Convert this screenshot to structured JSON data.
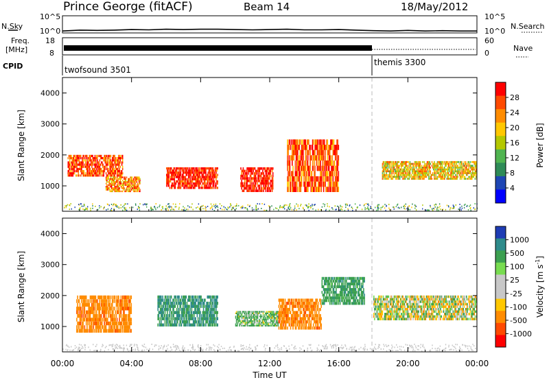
{
  "header": {
    "title": "Prince George (fitACF)",
    "beam": "Beam 14",
    "date": "18/May/2012"
  },
  "top_panels": {
    "nsky_label": "N.Sky",
    "nsky_ticks": [
      "10^5",
      "10^0"
    ],
    "nsearch_label": "N.Search",
    "nsearch_ticks": [
      "10^5",
      "10^0"
    ],
    "freq_label_1": "Freq.",
    "freq_label_2": "[MHz]",
    "freq_ticks": [
      "18",
      "8"
    ],
    "nave_label": "Nave",
    "nave_ticks": [
      "60",
      "0"
    ],
    "cpid_label": "CPID",
    "cpid_segments": [
      {
        "name": "twofsound 3501",
        "start_hour": 0,
        "end_hour": 18
      },
      {
        "name": "themis 3300",
        "start_hour": 18,
        "end_hour": 24
      }
    ]
  },
  "power_panel": {
    "ylabel": "Slant Range [km]",
    "yticks": [
      "4000",
      "3000",
      "2000",
      "1000"
    ],
    "colorbar_label": "Power [dB]",
    "colorbar_ticks": [
      "28",
      "24",
      "20",
      "16",
      "12",
      "8",
      "4"
    ],
    "colors": [
      "#ff0000",
      "#ff4a00",
      "#ff8c00",
      "#ffc800",
      "#b4c800",
      "#50b450",
      "#2e8b57",
      "#1e46b4",
      "#0000ff"
    ]
  },
  "velocity_panel": {
    "ylabel": "Slant Range [km]",
    "yticks": [
      "4000",
      "3000",
      "2000",
      "1000"
    ],
    "colorbar_label": "Velocity [m s",
    "colorbar_label_exp": "-1",
    "colorbar_label_end": "]",
    "colorbar_ticks": [
      "1000",
      "500",
      "100",
      "25",
      "-25",
      "-100",
      "-500",
      "-1000"
    ],
    "colors": [
      "#1e3cb4",
      "#2e8b8b",
      "#3ca050",
      "#78dc50",
      "#c8c8c8",
      "#c8c8c8",
      "#ffc800",
      "#ff8c00",
      "#ff4a00",
      "#ff0000"
    ]
  },
  "xaxis": {
    "ticks": [
      "00:00",
      "04:00",
      "08:00",
      "12:00",
      "16:00",
      "20:00",
      "00:00"
    ],
    "label": "Time UT"
  },
  "chart_data": [
    {
      "type": "line",
      "ylim": [
        0,
        5
      ],
      "xlim": [
        0,
        24
      ],
      "note_series": "N.Sky counts (log)",
      "x": [
        0,
        1,
        2,
        3,
        4,
        5,
        6,
        7,
        8,
        9,
        10,
        11,
        12,
        13,
        14,
        15,
        16,
        17,
        18,
        19,
        20,
        21,
        22,
        23,
        24
      ],
      "values": [
        0.2,
        0.5,
        0.4,
        0.5,
        0.7,
        0.6,
        0.8,
        0.7,
        0.8,
        0.8,
        0.7,
        0.6,
        0.7,
        0.8,
        0.6,
        0.6,
        0.7,
        0.5,
        0.3,
        0.2,
        0.4,
        0.2,
        0.3,
        0.2,
        0.2
      ]
    },
    {
      "type": "heatmap",
      "xlim": [
        0,
        24
      ],
      "ylim": [
        180,
        4500
      ],
      "quantity": "Power [dB]",
      "regions": [
        {
          "t0": 0.3,
          "t1": 3.5,
          "r0": 1300,
          "r1": 2000,
          "value": 24
        },
        {
          "t0": 2.5,
          "t1": 4.5,
          "r0": 800,
          "r1": 1300,
          "value": 20
        },
        {
          "t0": 6.0,
          "t1": 9.0,
          "r0": 900,
          "r1": 1600,
          "value": 28
        },
        {
          "t0": 10.3,
          "t1": 12.2,
          "r0": 800,
          "r1": 1600,
          "value": 28
        },
        {
          "t0": 13.0,
          "t1": 16.0,
          "r0": 800,
          "r1": 2500,
          "value": 24
        },
        {
          "t0": 18.5,
          "t1": 24.0,
          "r0": 1200,
          "r1": 1800,
          "value": 16
        }
      ]
    },
    {
      "type": "heatmap",
      "xlim": [
        0,
        24
      ],
      "ylim": [
        180,
        4500
      ],
      "quantity": "Velocity [m s-1]",
      "regions": [
        {
          "t0": 0.8,
          "t1": 4.0,
          "r0": 800,
          "r1": 2000,
          "value": -300
        },
        {
          "t0": 5.5,
          "t1": 9.0,
          "r0": 1000,
          "r1": 2000,
          "value": 300
        },
        {
          "t0": 10.0,
          "t1": 12.5,
          "r0": 1000,
          "r1": 1500,
          "value": 100
        },
        {
          "t0": 12.5,
          "t1": 15.0,
          "r0": 900,
          "r1": 1900,
          "value": -300
        },
        {
          "t0": 15.0,
          "t1": 17.5,
          "r0": 1700,
          "r1": 2600,
          "value": 200
        },
        {
          "t0": 18.0,
          "t1": 24.0,
          "r0": 1200,
          "r1": 2000,
          "value": 0
        }
      ]
    }
  ]
}
